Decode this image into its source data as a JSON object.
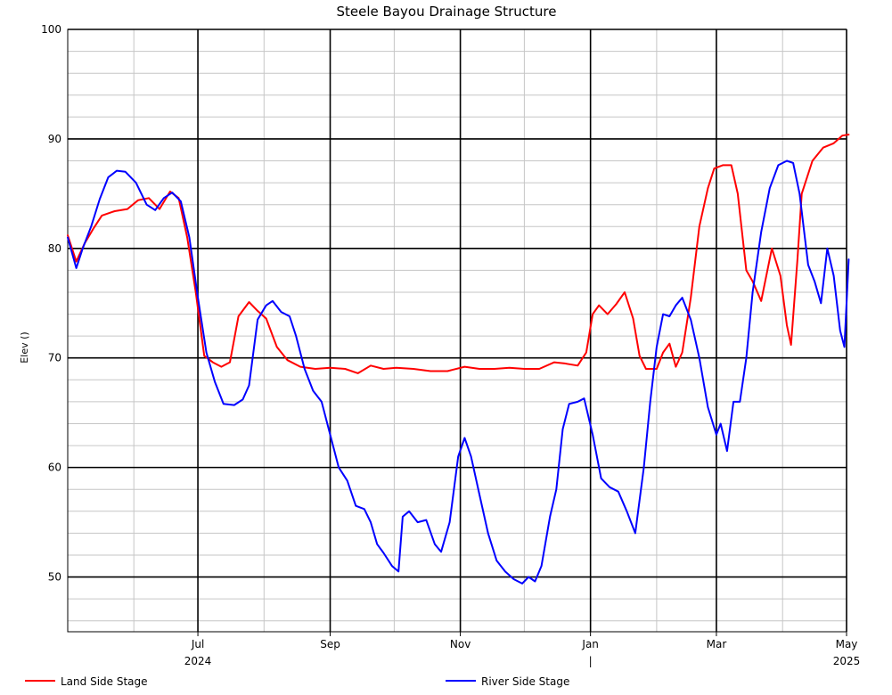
{
  "chart_data": {
    "type": "line",
    "title": "Steele Bayou Drainage Structure",
    "ylabel": "Elev ()",
    "xlabel": "",
    "x_date_range": [
      "2024-05-01",
      "2025-05-01"
    ],
    "ylim": [
      45,
      100
    ],
    "y_ticks": [
      50,
      60,
      70,
      80,
      90,
      100
    ],
    "y_tick_labels": [
      "50",
      "60",
      "70",
      "80",
      "90",
      "100"
    ],
    "x_major_ticks": [
      {
        "date": "2024-07-01",
        "label": "Jul",
        "year_label": "2024"
      },
      {
        "date": "2024-09-01",
        "label": "Sep",
        "year_label": ""
      },
      {
        "date": "2024-11-01",
        "label": "Nov",
        "year_label": ""
      },
      {
        "date": "2025-01-01",
        "label": "Jan",
        "year_label": "|"
      },
      {
        "date": "2025-03-01",
        "label": "Mar",
        "year_label": ""
      },
      {
        "date": "2025-05-01",
        "label": "May",
        "year_label": "2025"
      }
    ],
    "grid": true,
    "legend_position": "bottom",
    "series": [
      {
        "name": "Land Side Stage",
        "color": "#ff0000",
        "points": [
          [
            "2024-05-01",
            81.2
          ],
          [
            "2024-05-05",
            78.8
          ],
          [
            "2024-05-09",
            80.5
          ],
          [
            "2024-05-13",
            81.8
          ],
          [
            "2024-05-17",
            83.0
          ],
          [
            "2024-05-23",
            83.4
          ],
          [
            "2024-05-29",
            83.6
          ],
          [
            "2024-06-03",
            84.4
          ],
          [
            "2024-06-08",
            84.6
          ],
          [
            "2024-06-13",
            83.6
          ],
          [
            "2024-06-18",
            85.2
          ],
          [
            "2024-06-22",
            84.6
          ],
          [
            "2024-06-26",
            81.0
          ],
          [
            "2024-06-30",
            76.0
          ],
          [
            "2024-07-04",
            70.2
          ],
          [
            "2024-07-08",
            69.6
          ],
          [
            "2024-07-12",
            69.2
          ],
          [
            "2024-07-16",
            69.6
          ],
          [
            "2024-07-20",
            73.8
          ],
          [
            "2024-07-25",
            75.1
          ],
          [
            "2024-07-29",
            74.3
          ],
          [
            "2024-08-02",
            73.6
          ],
          [
            "2024-08-07",
            71.0
          ],
          [
            "2024-08-12",
            69.8
          ],
          [
            "2024-08-18",
            69.2
          ],
          [
            "2024-08-25",
            69.0
          ],
          [
            "2024-09-01",
            69.1
          ],
          [
            "2024-09-08",
            69.0
          ],
          [
            "2024-09-14",
            68.6
          ],
          [
            "2024-09-20",
            69.3
          ],
          [
            "2024-09-26",
            69.0
          ],
          [
            "2024-10-02",
            69.1
          ],
          [
            "2024-10-10",
            69.0
          ],
          [
            "2024-10-18",
            68.8
          ],
          [
            "2024-10-26",
            68.8
          ],
          [
            "2024-11-03",
            69.2
          ],
          [
            "2024-11-10",
            69.0
          ],
          [
            "2024-11-17",
            69.0
          ],
          [
            "2024-11-24",
            69.1
          ],
          [
            "2024-12-01",
            69.0
          ],
          [
            "2024-12-08",
            69.0
          ],
          [
            "2024-12-15",
            69.6
          ],
          [
            "2024-12-20",
            69.5
          ],
          [
            "2024-12-26",
            69.3
          ],
          [
            "2024-12-30",
            70.5
          ],
          [
            "2025-01-02",
            74.0
          ],
          [
            "2025-01-05",
            74.8
          ],
          [
            "2025-01-09",
            74.0
          ],
          [
            "2025-01-13",
            74.9
          ],
          [
            "2025-01-17",
            76.0
          ],
          [
            "2025-01-21",
            73.6
          ],
          [
            "2025-01-24",
            70.2
          ],
          [
            "2025-01-27",
            69.0
          ],
          [
            "2025-02-01",
            69.0
          ],
          [
            "2025-02-04",
            70.5
          ],
          [
            "2025-02-07",
            71.3
          ],
          [
            "2025-02-10",
            69.2
          ],
          [
            "2025-02-13",
            70.5
          ],
          [
            "2025-02-17",
            75.5
          ],
          [
            "2025-02-21",
            82.0
          ],
          [
            "2025-02-25",
            85.5
          ],
          [
            "2025-02-28",
            87.3
          ],
          [
            "2025-03-04",
            87.6
          ],
          [
            "2025-03-08",
            87.6
          ],
          [
            "2025-03-11",
            85.0
          ],
          [
            "2025-03-15",
            78.0
          ],
          [
            "2025-03-18",
            77.0
          ],
          [
            "2025-03-22",
            75.2
          ],
          [
            "2025-03-27",
            80.0
          ],
          [
            "2025-03-31",
            77.5
          ],
          [
            "2025-04-03",
            73.0
          ],
          [
            "2025-04-05",
            71.2
          ],
          [
            "2025-04-08",
            79.0
          ],
          [
            "2025-04-10",
            85.0
          ],
          [
            "2025-04-15",
            88.0
          ],
          [
            "2025-04-20",
            89.2
          ],
          [
            "2025-04-25",
            89.6
          ],
          [
            "2025-04-29",
            90.3
          ],
          [
            "2025-05-02",
            90.4
          ]
        ]
      },
      {
        "name": "River Side Stage",
        "color": "#0000ff",
        "points": [
          [
            "2024-05-01",
            81.0
          ],
          [
            "2024-05-05",
            78.2
          ],
          [
            "2024-05-08",
            80.0
          ],
          [
            "2024-05-12",
            82.0
          ],
          [
            "2024-05-16",
            84.5
          ],
          [
            "2024-05-20",
            86.5
          ],
          [
            "2024-05-24",
            87.1
          ],
          [
            "2024-05-28",
            87.0
          ],
          [
            "2024-06-02",
            86.0
          ],
          [
            "2024-06-07",
            84.0
          ],
          [
            "2024-06-11",
            83.5
          ],
          [
            "2024-06-15",
            84.6
          ],
          [
            "2024-06-19",
            85.1
          ],
          [
            "2024-06-23",
            84.3
          ],
          [
            "2024-06-27",
            81.0
          ],
          [
            "2024-07-01",
            75.5
          ],
          [
            "2024-07-05",
            70.5
          ],
          [
            "2024-07-09",
            67.8
          ],
          [
            "2024-07-13",
            65.8
          ],
          [
            "2024-07-18",
            65.7
          ],
          [
            "2024-07-22",
            66.2
          ],
          [
            "2024-07-25",
            67.5
          ],
          [
            "2024-07-29",
            73.5
          ],
          [
            "2024-08-02",
            74.8
          ],
          [
            "2024-08-05",
            75.2
          ],
          [
            "2024-08-09",
            74.2
          ],
          [
            "2024-08-13",
            73.8
          ],
          [
            "2024-08-16",
            72.0
          ],
          [
            "2024-08-20",
            69.0
          ],
          [
            "2024-08-24",
            67.0
          ],
          [
            "2024-08-28",
            66.0
          ],
          [
            "2024-09-01",
            63.0
          ],
          [
            "2024-09-05",
            60.0
          ],
          [
            "2024-09-09",
            58.8
          ],
          [
            "2024-09-13",
            56.5
          ],
          [
            "2024-09-17",
            56.2
          ],
          [
            "2024-09-20",
            55.0
          ],
          [
            "2024-09-23",
            53.0
          ],
          [
            "2024-09-26",
            52.2
          ],
          [
            "2024-09-30",
            51.0
          ],
          [
            "2024-10-03",
            50.5
          ],
          [
            "2024-10-05",
            55.5
          ],
          [
            "2024-10-08",
            56.0
          ],
          [
            "2024-10-12",
            55.0
          ],
          [
            "2024-10-16",
            55.2
          ],
          [
            "2024-10-20",
            53.0
          ],
          [
            "2024-10-23",
            52.3
          ],
          [
            "2024-10-27",
            55.0
          ],
          [
            "2024-10-31",
            61.0
          ],
          [
            "2024-11-03",
            62.7
          ],
          [
            "2024-11-06",
            61.0
          ],
          [
            "2024-11-10",
            57.5
          ],
          [
            "2024-11-14",
            54.0
          ],
          [
            "2024-11-18",
            51.5
          ],
          [
            "2024-11-22",
            50.5
          ],
          [
            "2024-11-26",
            49.8
          ],
          [
            "2024-11-30",
            49.4
          ],
          [
            "2024-12-03",
            50.0
          ],
          [
            "2024-12-06",
            49.6
          ],
          [
            "2024-12-09",
            51.0
          ],
          [
            "2024-12-13",
            55.5
          ],
          [
            "2024-12-16",
            58.0
          ],
          [
            "2024-12-19",
            63.5
          ],
          [
            "2024-12-22",
            65.8
          ],
          [
            "2024-12-26",
            66.0
          ],
          [
            "2024-12-29",
            66.3
          ],
          [
            "2025-01-02",
            63.0
          ],
          [
            "2025-01-06",
            59.0
          ],
          [
            "2025-01-10",
            58.2
          ],
          [
            "2025-01-14",
            57.8
          ],
          [
            "2025-01-18",
            56.0
          ],
          [
            "2025-01-22",
            54.0
          ],
          [
            "2025-01-26",
            60.0
          ],
          [
            "2025-01-29",
            66.0
          ],
          [
            "2025-02-01",
            71.0
          ],
          [
            "2025-02-04",
            74.0
          ],
          [
            "2025-02-07",
            73.8
          ],
          [
            "2025-02-10",
            74.8
          ],
          [
            "2025-02-13",
            75.5
          ],
          [
            "2025-02-17",
            73.5
          ],
          [
            "2025-02-21",
            70.0
          ],
          [
            "2025-02-25",
            65.5
          ],
          [
            "2025-03-01",
            63.0
          ],
          [
            "2025-03-03",
            64.0
          ],
          [
            "2025-03-06",
            61.5
          ],
          [
            "2025-03-09",
            66.0
          ],
          [
            "2025-03-12",
            66.0
          ],
          [
            "2025-03-15",
            70.0
          ],
          [
            "2025-03-18",
            76.0
          ],
          [
            "2025-03-22",
            81.5
          ],
          [
            "2025-03-26",
            85.5
          ],
          [
            "2025-03-30",
            87.6
          ],
          [
            "2025-04-03",
            88.0
          ],
          [
            "2025-04-06",
            87.8
          ],
          [
            "2025-04-09",
            85.0
          ],
          [
            "2025-04-13",
            78.5
          ],
          [
            "2025-04-16",
            77.0
          ],
          [
            "2025-04-19",
            75.0
          ],
          [
            "2025-04-22",
            80.0
          ],
          [
            "2025-04-25",
            77.5
          ],
          [
            "2025-04-28",
            72.5
          ],
          [
            "2025-04-30",
            71.0
          ],
          [
            "2025-05-02",
            79.0
          ]
        ]
      }
    ]
  }
}
